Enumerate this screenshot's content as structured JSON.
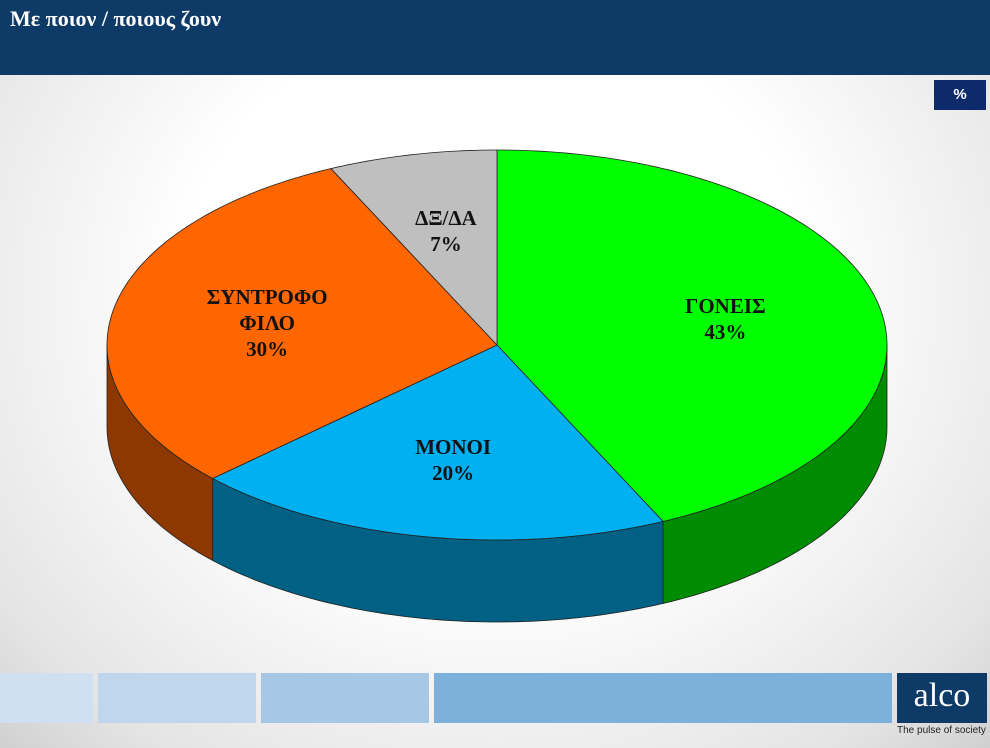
{
  "chart_data": {
    "type": "pie",
    "title": "Με ποιον / ποιους ζουν",
    "unit_badge": "%",
    "categories": [
      "ΓΟΝΕΙΣ",
      "ΜΟΝΟΙ",
      "ΣΥΝΤΡΟΦΟ ΦΙΛΟ",
      "ΔΞ/ΔΑ"
    ],
    "values": [
      43,
      20,
      30,
      7
    ],
    "value_labels": [
      "43%",
      "20%",
      "30%",
      "7%"
    ],
    "colors": [
      "#00ff00",
      "#00b0f0",
      "#ff6600",
      "#bfbfbf"
    ],
    "three_d": true
  },
  "logo": {
    "name": "alco",
    "tagline": "The pulse of society"
  }
}
